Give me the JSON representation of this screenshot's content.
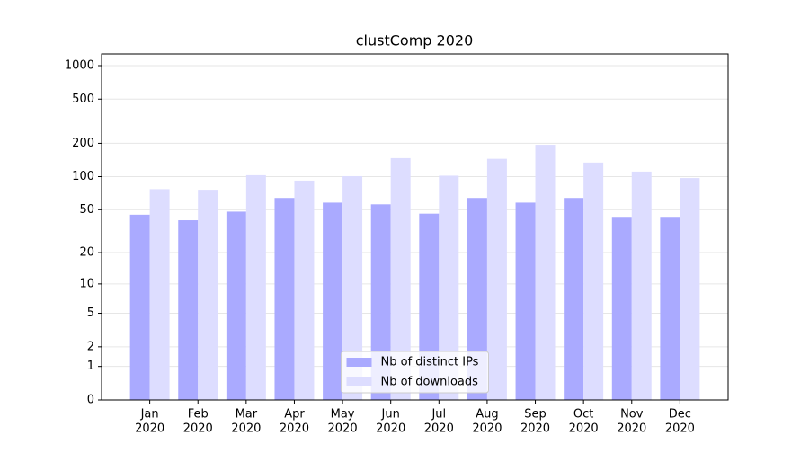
{
  "chart_data": {
    "type": "bar",
    "title": "clustComp 2020",
    "categories": [
      [
        "Jan",
        "2020"
      ],
      [
        "Feb",
        "2020"
      ],
      [
        "Mar",
        "2020"
      ],
      [
        "Apr",
        "2020"
      ],
      [
        "May",
        "2020"
      ],
      [
        "Jun",
        "2020"
      ],
      [
        "Jul",
        "2020"
      ],
      [
        "Aug",
        "2020"
      ],
      [
        "Sep",
        "2020"
      ],
      [
        "Oct",
        "2020"
      ],
      [
        "Nov",
        "2020"
      ],
      [
        "Dec",
        "2020"
      ]
    ],
    "series": [
      {
        "name": "Nb of distinct IPs",
        "color": "#aaaaff",
        "values": [
          45,
          40,
          48,
          64,
          58,
          56,
          46,
          64,
          58,
          64,
          43,
          43
        ]
      },
      {
        "name": "Nb of downloads",
        "color": "#ddddff",
        "values": [
          77,
          76,
          103,
          92,
          101,
          147,
          102,
          145,
          194,
          134,
          111,
          97
        ]
      }
    ],
    "yscale": "log1p",
    "ylim": [
      0,
      1273
    ],
    "yticks": [
      0,
      1,
      2,
      5,
      10,
      20,
      50,
      100,
      200,
      500,
      1000
    ],
    "grid": true,
    "legend": "lower center"
  }
}
